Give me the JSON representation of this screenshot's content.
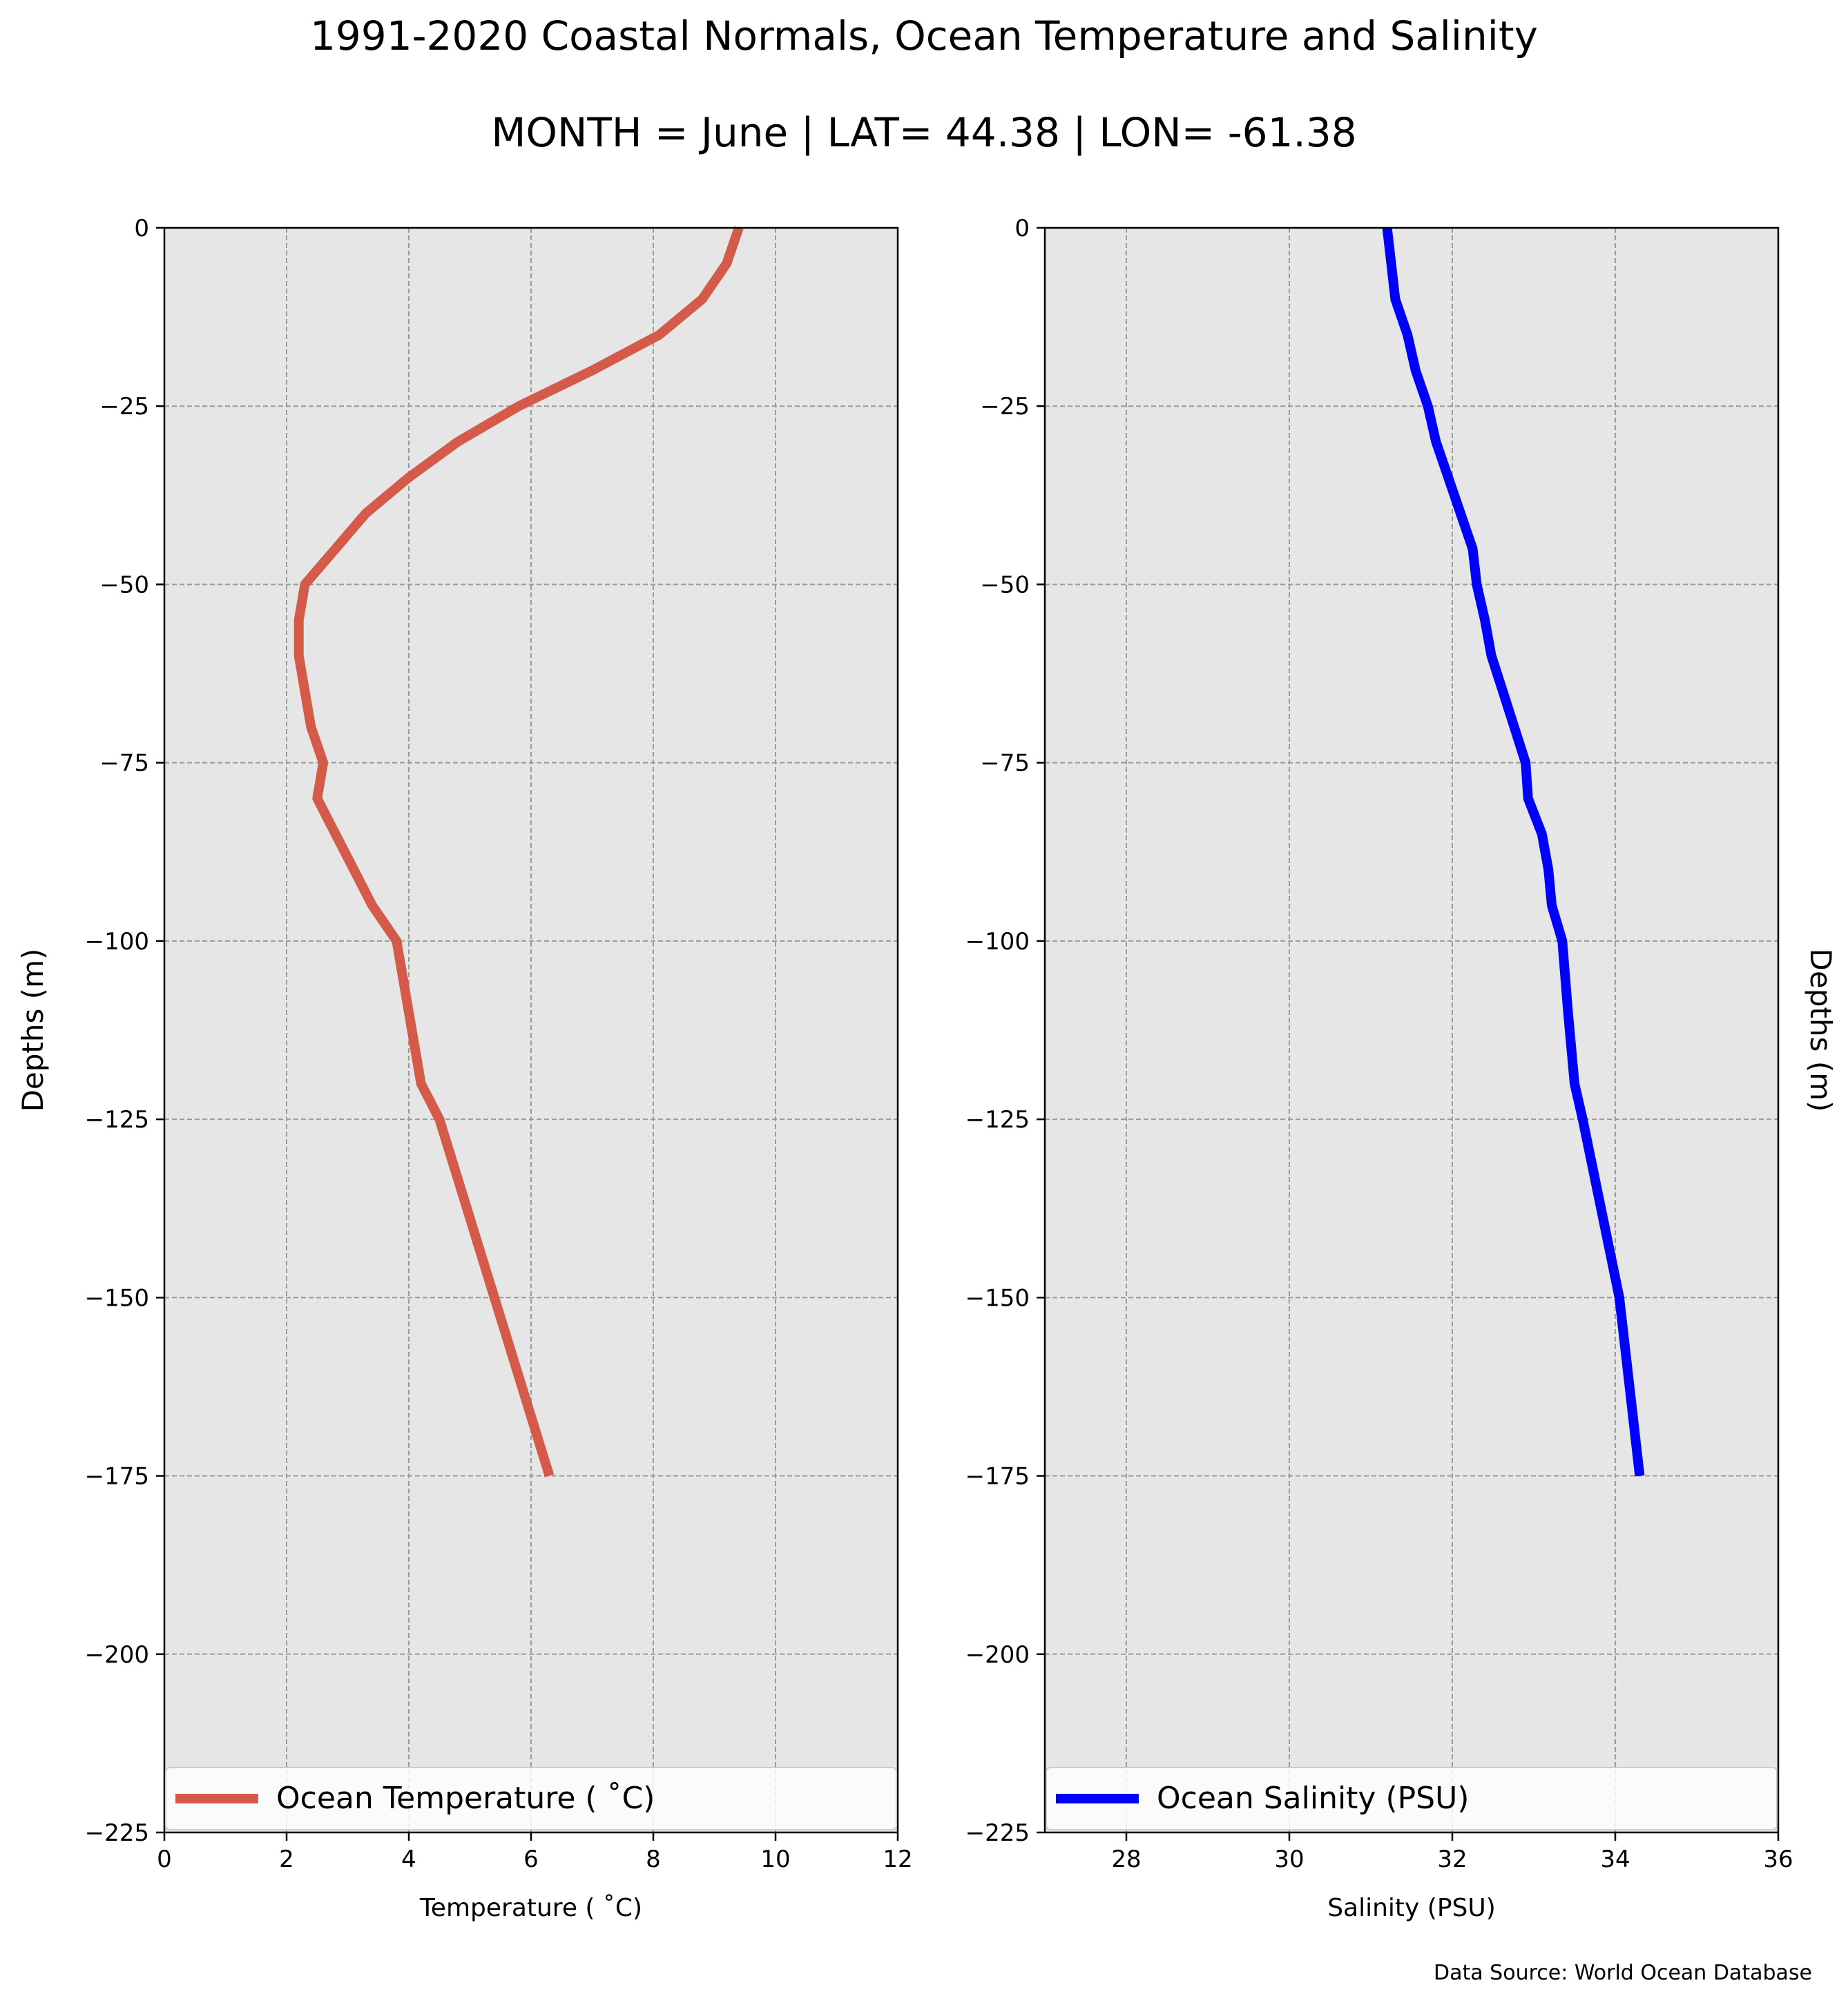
{
  "title": "1991-2020 Coastal Normals, Ocean Temperature and Salinity",
  "subtitle": "MONTH = June | LAT= 44.38 | LON= -61.38",
  "source_note": "Data Source: World Ocean Database",
  "chart_data": [
    {
      "type": "line",
      "xlabel": "Temperature ( ˚C)",
      "ylabel": "Depths (m)",
      "ylabel_side": "left",
      "xlim": [
        0,
        12
      ],
      "ylim": [
        -225,
        0
      ],
      "xticks": [
        0,
        2,
        4,
        6,
        8,
        10,
        12
      ],
      "xtick_labels": [
        "0",
        "2",
        "4",
        "6",
        "8",
        "10",
        "12"
      ],
      "yticks": [
        0,
        -25,
        -50,
        -75,
        -100,
        -125,
        -150,
        -175,
        -200,
        -225
      ],
      "ytick_labels": [
        "0",
        "−25",
        "−50",
        "−75",
        "−100",
        "−125",
        "−150",
        "−175",
        "−200",
        "−225"
      ],
      "grid": true,
      "legend_position": "lower center",
      "series": [
        {
          "name": "Ocean Temperature ( ˚C)",
          "color": "#d45b4a",
          "x": [
            9.4,
            9.2,
            8.8,
            8.1,
            7.0,
            5.8,
            4.8,
            4.0,
            3.3,
            2.8,
            2.3,
            2.2,
            2.2,
            2.3,
            2.4,
            2.6,
            2.5,
            2.8,
            3.1,
            3.4,
            3.8,
            4.0,
            4.2,
            4.5,
            5.4,
            6.3
          ],
          "y": [
            0,
            -5,
            -10,
            -15,
            -20,
            -25,
            -30,
            -35,
            -40,
            -45,
            -50,
            -55,
            -60,
            -65,
            -70,
            -75,
            -80,
            -85,
            -90,
            -95,
            -100,
            -110,
            -120,
            -125,
            -150,
            -175
          ]
        }
      ]
    },
    {
      "type": "line",
      "xlabel": "Salinity (PSU)",
      "ylabel": "Depths (m)",
      "ylabel_side": "right",
      "xlim": [
        27,
        36
      ],
      "ylim": [
        -225,
        0
      ],
      "xticks": [
        28,
        30,
        32,
        34,
        36
      ],
      "xtick_labels": [
        "28",
        "30",
        "32",
        "34",
        "36"
      ],
      "yticks": [
        0,
        -25,
        -50,
        -75,
        -100,
        -125,
        -150,
        -175,
        -200,
        -225
      ],
      "ytick_labels": [
        "0",
        "−25",
        "−50",
        "−75",
        "−100",
        "−125",
        "−150",
        "−175",
        "−200",
        "−225"
      ],
      "grid": true,
      "legend_position": "lower center",
      "series": [
        {
          "name": "Ocean Salinity (PSU)",
          "color": "#0000ff",
          "x": [
            31.2,
            31.25,
            31.3,
            31.45,
            31.55,
            31.7,
            31.8,
            31.95,
            32.1,
            32.25,
            32.3,
            32.4,
            32.48,
            32.62,
            32.76,
            32.9,
            32.93,
            33.1,
            33.18,
            33.22,
            33.35,
            33.42,
            33.5,
            33.6,
            34.05,
            34.3
          ],
          "y": [
            0,
            -5,
            -10,
            -15,
            -20,
            -25,
            -30,
            -35,
            -40,
            -45,
            -50,
            -55,
            -60,
            -65,
            -70,
            -75,
            -80,
            -85,
            -90,
            -95,
            -100,
            -110,
            -120,
            -125,
            -150,
            -175
          ]
        }
      ]
    }
  ]
}
